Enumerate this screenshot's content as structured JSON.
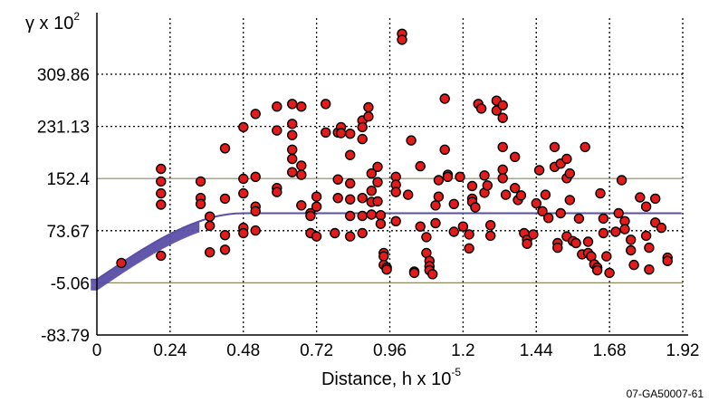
{
  "chart_data": {
    "type": "scatter",
    "title": "",
    "ylabel_parts": {
      "prefix": "γ x 10",
      "exp": "2"
    },
    "xlabel_parts": {
      "prefix": "Distance, h x 10",
      "exp": "-5"
    },
    "figure_id": "07-GA50007-61",
    "xlim": [
      0,
      1.92
    ],
    "ylim": [
      -83.79,
      375
    ],
    "x_ticks": [
      0,
      0.24,
      0.48,
      0.72,
      0.96,
      1.2,
      1.44,
      1.68,
      1.92
    ],
    "x_tick_labels": [
      "0",
      "0.24",
      "0.48",
      "0.72",
      "0.96",
      "1.2",
      "1.44",
      "1.68",
      "1.92"
    ],
    "y_ticks": [
      -83.79,
      -5.06,
      73.67,
      152.4,
      231.13,
      309.86
    ],
    "y_tick_labels": [
      "-83.79",
      "-5.06",
      "73.67",
      "152.4",
      "231.13",
      "309.86"
    ],
    "grid": true,
    "colors": {
      "points": "#e31b1b",
      "point_edge": "#000000",
      "model": "#5a4fa6",
      "hgrid": "#8a8a5a",
      "axis": "#000000"
    },
    "series": [
      {
        "role": "experimental",
        "points": [
          [
            0.08,
            25
          ],
          [
            0.21,
            113
          ],
          [
            0.21,
            130
          ],
          [
            0.21,
            148
          ],
          [
            0.21,
            36
          ],
          [
            0.21,
            167
          ],
          [
            0.34,
            148
          ],
          [
            0.34,
            123
          ],
          [
            0.34,
            114
          ],
          [
            0.37,
            95
          ],
          [
            0.37,
            81
          ],
          [
            0.37,
            41
          ],
          [
            0.42,
            198
          ],
          [
            0.42,
            122
          ],
          [
            0.42,
            45
          ],
          [
            0.42,
            67
          ],
          [
            0.48,
            230
          ],
          [
            0.48,
            152
          ],
          [
            0.48,
            130
          ],
          [
            0.48,
            78
          ],
          [
            0.48,
            70
          ],
          [
            0.52,
            250
          ],
          [
            0.52,
            110
          ],
          [
            0.52,
            103
          ],
          [
            0.52,
            74
          ],
          [
            0.52,
            155
          ],
          [
            0.59,
            261
          ],
          [
            0.59,
            225
          ],
          [
            0.59,
            138
          ],
          [
            0.59,
            132
          ],
          [
            0.64,
            265
          ],
          [
            0.64,
            235
          ],
          [
            0.64,
            218
          ],
          [
            0.64,
            196
          ],
          [
            0.64,
            182
          ],
          [
            0.64,
            162
          ],
          [
            0.67,
            261
          ],
          [
            0.67,
            172
          ],
          [
            0.67,
            158
          ],
          [
            0.67,
            112
          ],
          [
            0.7,
            100
          ],
          [
            0.7,
            96
          ],
          [
            0.7,
            70
          ],
          [
            0.72,
            65
          ],
          [
            0.72,
            125
          ],
          [
            0.72,
            110
          ],
          [
            0.75,
            265
          ],
          [
            0.75,
            222
          ],
          [
            0.78,
            70
          ],
          [
            0.79,
            222
          ],
          [
            0.79,
            151
          ],
          [
            0.79,
            123
          ],
          [
            0.8,
            230
          ],
          [
            0.8,
            221
          ],
          [
            0.83,
            220
          ],
          [
            0.83,
            188
          ],
          [
            0.83,
            145
          ],
          [
            0.83,
            121
          ],
          [
            0.83,
            96
          ],
          [
            0.83,
            65
          ],
          [
            0.87,
            240
          ],
          [
            0.87,
            230
          ],
          [
            0.87,
            212
          ],
          [
            0.87,
            123
          ],
          [
            0.87,
            96
          ],
          [
            0.87,
            70
          ],
          [
            0.89,
            260
          ],
          [
            0.89,
            246
          ],
          [
            0.9,
            160
          ],
          [
            0.9,
            134
          ],
          [
            0.9,
            117
          ],
          [
            0.9,
            98
          ],
          [
            0.92,
            170
          ],
          [
            0.92,
            147
          ],
          [
            0.92,
            118
          ],
          [
            0.93,
            97
          ],
          [
            0.93,
            84
          ],
          [
            0.94,
            40
          ],
          [
            0.94,
            35
          ],
          [
            0.94,
            22
          ],
          [
            0.95,
            18
          ],
          [
            0.95,
            15
          ],
          [
            0.98,
            155
          ],
          [
            0.98,
            143
          ],
          [
            0.98,
            132
          ],
          [
            0.98,
            88
          ],
          [
            1.0,
            371
          ],
          [
            1.0,
            362
          ],
          [
            1.02,
            128
          ],
          [
            1.03,
            210
          ],
          [
            1.04,
            12
          ],
          [
            1.04,
            10
          ],
          [
            1.06,
            171
          ],
          [
            1.06,
            80
          ],
          [
            1.08,
            64
          ],
          [
            1.08,
            40
          ],
          [
            1.09,
            28
          ],
          [
            1.09,
            20
          ],
          [
            1.09,
            14
          ],
          [
            1.1,
            8
          ],
          [
            1.11,
            85
          ],
          [
            1.11,
            112
          ],
          [
            1.12,
            125
          ],
          [
            1.12,
            150
          ],
          [
            1.14,
            273
          ],
          [
            1.14,
            196
          ],
          [
            1.15,
            158
          ],
          [
            1.15,
            155
          ],
          [
            1.17,
            114
          ],
          [
            1.17,
            72
          ],
          [
            1.19,
            155
          ],
          [
            1.2,
            80
          ],
          [
            1.22,
            68
          ],
          [
            1.22,
            47
          ],
          [
            1.23,
            141
          ],
          [
            1.23,
            122
          ],
          [
            1.23,
            117
          ],
          [
            1.24,
            109
          ],
          [
            1.25,
            265
          ],
          [
            1.26,
            258
          ],
          [
            1.27,
            157
          ],
          [
            1.27,
            131
          ],
          [
            1.28,
            142
          ],
          [
            1.29,
            82
          ],
          [
            1.29,
            66
          ],
          [
            1.31,
            270
          ],
          [
            1.31,
            255
          ],
          [
            1.33,
            263
          ],
          [
            1.33,
            244
          ],
          [
            1.33,
            200
          ],
          [
            1.33,
            166
          ],
          [
            1.33,
            153
          ],
          [
            1.34,
            128
          ],
          [
            1.37,
            185
          ],
          [
            1.37,
            138
          ],
          [
            1.38,
            120
          ],
          [
            1.39,
            127
          ],
          [
            1.4,
            70
          ],
          [
            1.41,
            60
          ],
          [
            1.41,
            54
          ],
          [
            1.43,
            68
          ],
          [
            1.44,
            115
          ],
          [
            1.45,
            165
          ],
          [
            1.46,
            103
          ],
          [
            1.47,
            128
          ],
          [
            1.48,
            93
          ],
          [
            1.5,
            200
          ],
          [
            1.5,
            170
          ],
          [
            1.51,
            55
          ],
          [
            1.51,
            48
          ],
          [
            1.52,
            175
          ],
          [
            1.52,
            100
          ],
          [
            1.54,
            182
          ],
          [
            1.54,
            153
          ],
          [
            1.54,
            65
          ],
          [
            1.55,
            160
          ],
          [
            1.55,
            120
          ],
          [
            1.56,
            58
          ],
          [
            1.57,
            55
          ],
          [
            1.58,
            92
          ],
          [
            1.59,
            38
          ],
          [
            1.6,
            200
          ],
          [
            1.61,
            57
          ],
          [
            1.61,
            40
          ],
          [
            1.62,
            35
          ],
          [
            1.63,
            23
          ],
          [
            1.64,
            18
          ],
          [
            1.64,
            14
          ],
          [
            1.65,
            130
          ],
          [
            1.66,
            92
          ],
          [
            1.66,
            70
          ],
          [
            1.67,
            35
          ],
          [
            1.68,
            10
          ],
          [
            1.7,
            72
          ],
          [
            1.71,
            100
          ],
          [
            1.72,
            150
          ],
          [
            1.73,
            88
          ],
          [
            1.73,
            76
          ],
          [
            1.75,
            60
          ],
          [
            1.75,
            44
          ],
          [
            1.76,
            22
          ],
          [
            1.78,
            124
          ],
          [
            1.8,
            110
          ],
          [
            1.8,
            66
          ],
          [
            1.81,
            48
          ],
          [
            1.81,
            15
          ],
          [
            1.83,
            122
          ],
          [
            1.83,
            86
          ],
          [
            1.85,
            78
          ],
          [
            1.87,
            33
          ],
          [
            1.87,
            28
          ]
        ]
      },
      {
        "role": "model",
        "type": "spherical",
        "nugget": 0,
        "sill": 100,
        "range": 0.48,
        "x_start": -0.02,
        "band_to_x": 0.34
      }
    ]
  }
}
